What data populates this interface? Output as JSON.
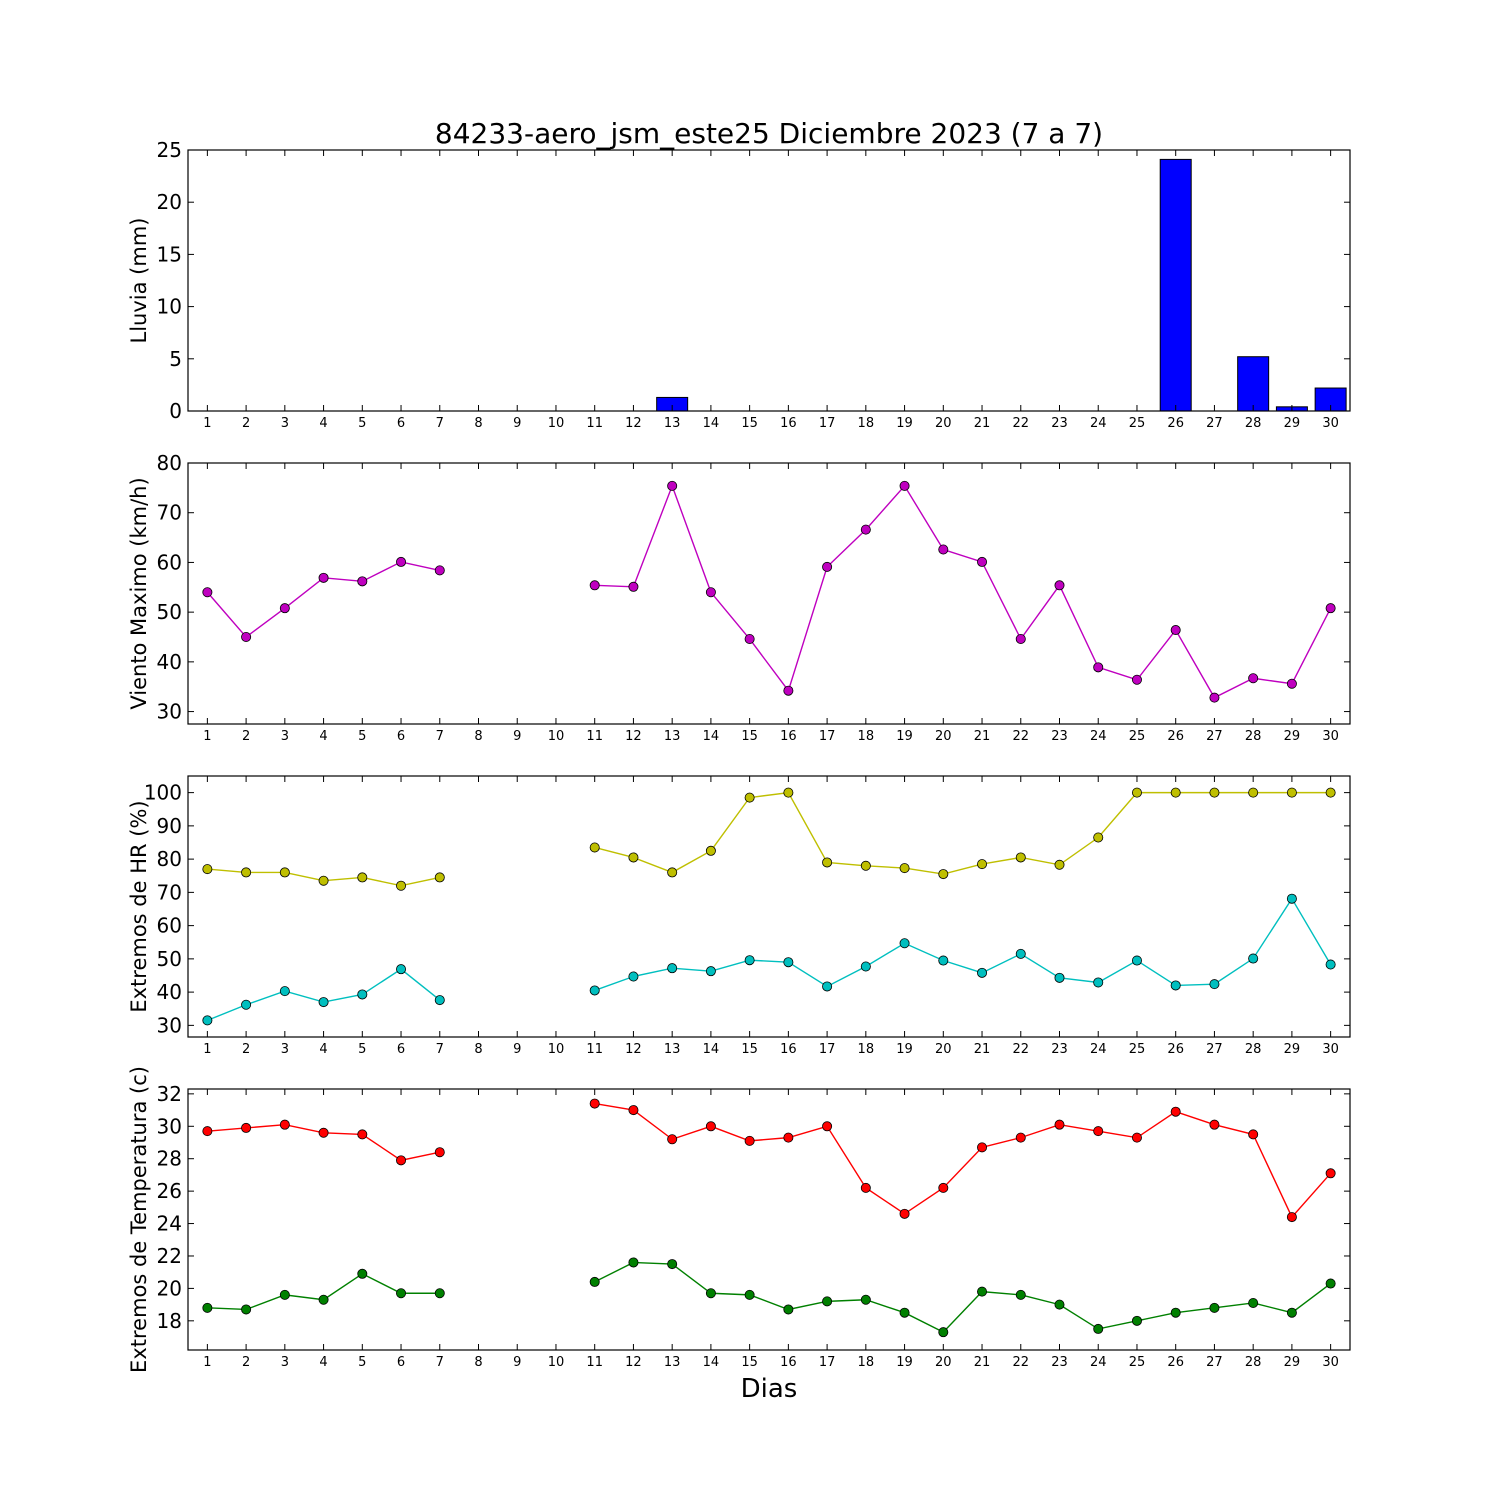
{
  "figure": {
    "title": "84233-aero_jsm_este25 Diciembre 2023  (7 a 7)",
    "xlabel": "Dias"
  },
  "chart_data": [
    {
      "id": "lluvia",
      "type": "bar",
      "ylabel": "Lluvia (mm)",
      "ylim": [
        0,
        25
      ],
      "yticks": [
        0,
        5,
        10,
        15,
        20,
        25
      ],
      "x": [
        1,
        2,
        3,
        4,
        5,
        6,
        7,
        8,
        9,
        10,
        11,
        12,
        13,
        14,
        15,
        16,
        17,
        18,
        19,
        20,
        21,
        22,
        23,
        24,
        25,
        26,
        27,
        28,
        29,
        30
      ],
      "xlim": [
        0.5,
        30.5
      ],
      "grid": false,
      "series": [
        {
          "color": "#0000ff",
          "values": [
            0,
            0,
            0,
            0,
            0,
            0,
            0,
            null,
            null,
            null,
            0,
            0,
            1.3,
            0,
            0,
            0,
            0,
            0,
            0,
            0,
            0,
            0,
            0,
            0,
            0,
            24.1,
            0,
            5.2,
            0.4,
            2.2
          ]
        }
      ]
    },
    {
      "id": "viento",
      "type": "line",
      "ylabel": "Viento Maximo (km/h)",
      "ylim": [
        27.5,
        80
      ],
      "yticks": [
        30,
        40,
        50,
        60,
        70,
        80
      ],
      "x": [
        1,
        2,
        3,
        4,
        5,
        6,
        7,
        8,
        9,
        10,
        11,
        12,
        13,
        14,
        15,
        16,
        17,
        18,
        19,
        20,
        21,
        22,
        23,
        24,
        25,
        26,
        27,
        28,
        29,
        30
      ],
      "xlim": [
        0.5,
        30.5
      ],
      "grid": false,
      "series": [
        {
          "color": "#bf00bf",
          "values": [
            54,
            45,
            50.8,
            56.9,
            56.2,
            60.1,
            58.4,
            null,
            null,
            null,
            55.4,
            55.1,
            75.4,
            54,
            44.6,
            34.2,
            59.1,
            66.6,
            75.4,
            62.6,
            60.1,
            44.6,
            55.4,
            38.9,
            36.4,
            46.4,
            32.8,
            36.7,
            35.6,
            50.8
          ]
        }
      ]
    },
    {
      "id": "hr",
      "type": "line",
      "ylabel": "Extremos de HR (%)",
      "ylim": [
        26.5,
        105
      ],
      "yticks": [
        30,
        40,
        50,
        60,
        70,
        80,
        90,
        100
      ],
      "x": [
        1,
        2,
        3,
        4,
        5,
        6,
        7,
        8,
        9,
        10,
        11,
        12,
        13,
        14,
        15,
        16,
        17,
        18,
        19,
        20,
        21,
        22,
        23,
        24,
        25,
        26,
        27,
        28,
        29,
        30
      ],
      "xlim": [
        0.5,
        30.5
      ],
      "grid": false,
      "series": [
        {
          "color": "#bfbf00",
          "values": [
            77,
            76,
            76,
            73.5,
            74.5,
            72,
            74.5,
            null,
            null,
            null,
            83.5,
            80.5,
            76,
            82.5,
            98.5,
            100,
            79,
            78,
            77.3,
            75.5,
            78.5,
            80.5,
            78.3,
            86.5,
            100,
            100,
            100,
            100,
            100,
            100
          ]
        },
        {
          "color": "#00bfbf",
          "values": [
            31.5,
            36.2,
            40.3,
            37,
            39.3,
            46.9,
            37.6,
            null,
            null,
            null,
            40.5,
            44.7,
            47.2,
            46.3,
            49.6,
            49,
            41.7,
            47.7,
            54.7,
            49.5,
            45.8,
            51.5,
            44.3,
            42.9,
            49.5,
            42,
            42.4,
            50.1,
            68.1,
            48.3
          ]
        }
      ]
    },
    {
      "id": "temperatura",
      "type": "line",
      "ylabel": "Extremos de Temperatura (c)",
      "ylim": [
        16.2,
        32.3
      ],
      "yticks": [
        18,
        20,
        22,
        24,
        26,
        28,
        30,
        32
      ],
      "x": [
        1,
        2,
        3,
        4,
        5,
        6,
        7,
        8,
        9,
        10,
        11,
        12,
        13,
        14,
        15,
        16,
        17,
        18,
        19,
        20,
        21,
        22,
        23,
        24,
        25,
        26,
        27,
        28,
        29,
        30
      ],
      "xlim": [
        0.5,
        30.5
      ],
      "grid": false,
      "series": [
        {
          "color": "#ff0000",
          "values": [
            29.7,
            29.9,
            30.1,
            29.6,
            29.5,
            27.9,
            28.4,
            null,
            null,
            null,
            31.4,
            31,
            29.2,
            30,
            29.1,
            29.3,
            30,
            26.2,
            24.6,
            26.2,
            28.7,
            29.3,
            30.1,
            29.7,
            29.3,
            30.9,
            30.1,
            29.5,
            24.4,
            27.1
          ]
        },
        {
          "color": "#008000",
          "values": [
            18.8,
            18.7,
            19.6,
            19.3,
            20.9,
            19.7,
            19.7,
            null,
            null,
            null,
            20.4,
            21.6,
            21.5,
            19.7,
            19.6,
            18.7,
            19.2,
            19.3,
            18.5,
            17.3,
            19.8,
            19.6,
            19,
            17.5,
            18,
            18.5,
            18.8,
            19.1,
            18.5,
            20.3
          ]
        }
      ]
    }
  ]
}
